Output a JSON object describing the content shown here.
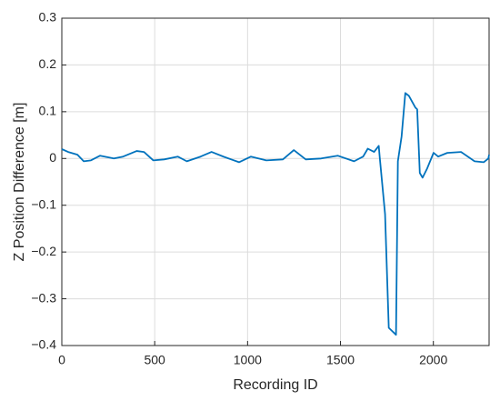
{
  "chart_data": {
    "type": "line",
    "xlabel": "Recording ID",
    "ylabel": "Z Position Difference [m]",
    "xlim": [
      0,
      2300
    ],
    "ylim": [
      -0.4,
      0.3
    ],
    "xticks": [
      0,
      500,
      1000,
      1500,
      2000
    ],
    "yticks": [
      {
        "value": -0.4,
        "label": "−0.4"
      },
      {
        "value": -0.3,
        "label": "−0.3"
      },
      {
        "value": -0.2,
        "label": "−0.2"
      },
      {
        "value": -0.1,
        "label": "−0.1"
      },
      0,
      0.1,
      0.2,
      0.3
    ],
    "grid": true,
    "series": [
      {
        "color": "#0072bd",
        "x": [
          0,
          34,
          84,
          118,
          157,
          206,
          280,
          330,
          403,
          442,
          492,
          551,
          624,
          673,
          747,
          806,
          870,
          954,
          1018,
          1101,
          1190,
          1249,
          1313,
          1396,
          1485,
          1573,
          1622,
          1647,
          1681,
          1706,
          1711,
          1740,
          1760,
          1799,
          1809,
          1829,
          1849,
          1868,
          1903,
          1913,
          1927,
          1942,
          1967,
          2001,
          2026,
          2075,
          2149,
          2222,
          2271,
          2296,
          2300
        ],
        "values": [
          0.02,
          0.014,
          0.008,
          -0.006,
          -0.004,
          0.006,
          0,
          0.004,
          0.016,
          0.014,
          -0.004,
          -0.002,
          0.004,
          -0.006,
          0.004,
          0.014,
          0.004,
          -0.008,
          0.004,
          -0.004,
          -0.002,
          0.018,
          -0.002,
          0,
          0.006,
          -0.006,
          0.004,
          0.021,
          0.014,
          0.027,
          0.004,
          -0.119,
          -0.362,
          -0.377,
          -0.006,
          0.047,
          0.14,
          0.134,
          0.109,
          0.105,
          -0.031,
          -0.041,
          -0.021,
          0.012,
          0.004,
          0.012,
          0.014,
          -0.006,
          -0.008,
          0,
          0.008
        ]
      }
    ]
  }
}
